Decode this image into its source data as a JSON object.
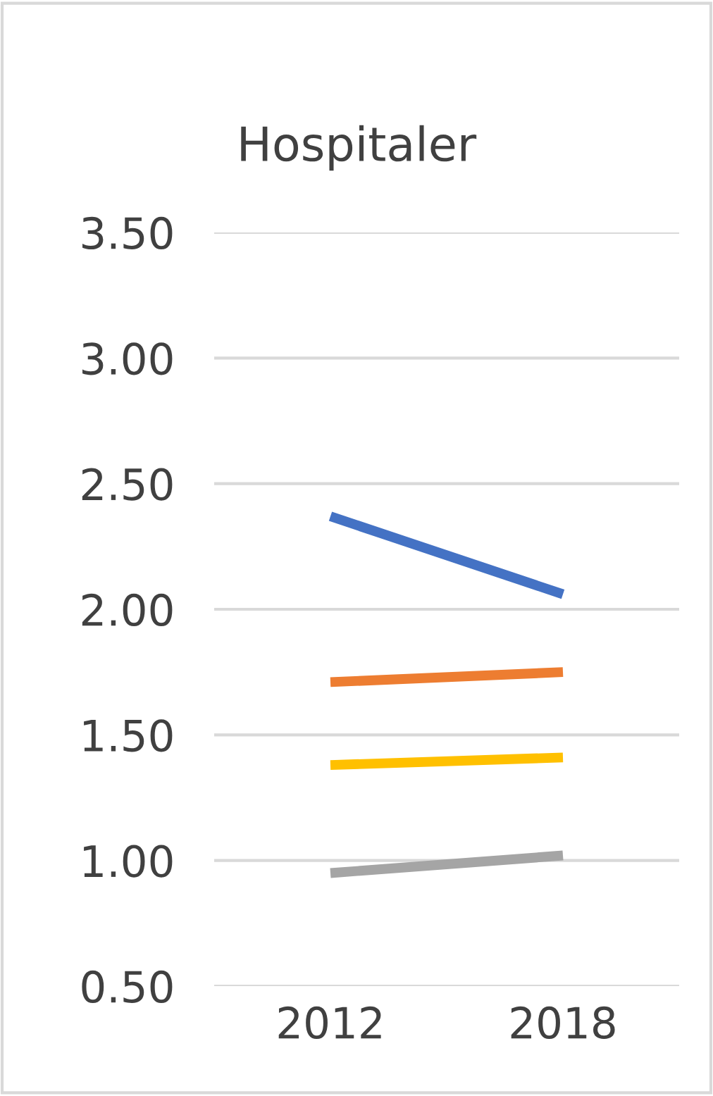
{
  "chart_data": {
    "type": "line",
    "title": "Hospitaler",
    "categories": [
      "2012",
      "2018"
    ],
    "series": [
      {
        "color": "#4472c4",
        "values": [
          2.37,
          2.06
        ]
      },
      {
        "color": "#ed7d31",
        "values": [
          1.71,
          1.75
        ]
      },
      {
        "color": "#ffc000",
        "values": [
          1.38,
          1.41
        ]
      },
      {
        "color": "#a5a5a5",
        "values": [
          0.95,
          1.02
        ]
      }
    ],
    "ylim": [
      0.5,
      3.5
    ],
    "yticks": [
      {
        "value": 0.5,
        "label": "0.50"
      },
      {
        "value": 1.0,
        "label": "1.00"
      },
      {
        "value": 1.5,
        "label": "1.50"
      },
      {
        "value": 2.0,
        "label": "2.00"
      },
      {
        "value": 2.5,
        "label": "2.50"
      },
      {
        "value": 3.0,
        "label": "3.00"
      },
      {
        "value": 3.5,
        "label": "3.50"
      }
    ],
    "grid": "y",
    "legend": false,
    "marker": "none",
    "line_style": "solid"
  }
}
